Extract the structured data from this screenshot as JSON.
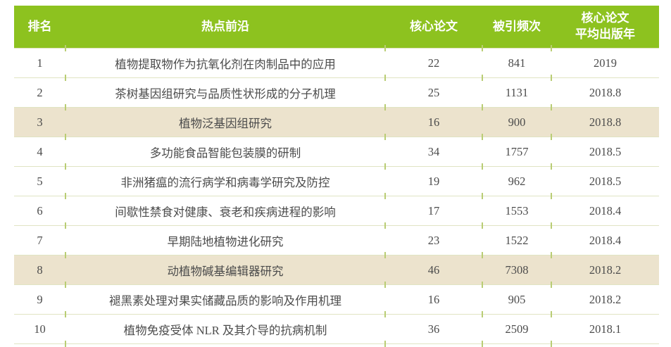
{
  "colors": {
    "header_bg": "#8dc21f",
    "header_text": "#ffffff",
    "highlight_row_bg": "#ece3cd",
    "separator_line": "#e0e4c3",
    "tick_mark": "#b9cd74",
    "body_text": "#4c4c4c"
  },
  "table": {
    "headers": [
      "排名",
      "热点前沿",
      "核心论文",
      "被引频次",
      "核心论文\n平均出版年"
    ],
    "rows": [
      {
        "rank": "1",
        "topic": "植物提取物作为抗氧化剂在肉制品中的应用",
        "papers": "22",
        "citations": "841",
        "year": "2019",
        "highlighted": false
      },
      {
        "rank": "2",
        "topic": "茶树基因组研究与品质性状形成的分子机理",
        "papers": "25",
        "citations": "1131",
        "year": "2018.8",
        "highlighted": false
      },
      {
        "rank": "3",
        "topic": "植物泛基因组研究",
        "papers": "16",
        "citations": "900",
        "year": "2018.8",
        "highlighted": true
      },
      {
        "rank": "4",
        "topic": "多功能食品智能包装膜的研制",
        "papers": "34",
        "citations": "1757",
        "year": "2018.5",
        "highlighted": false
      },
      {
        "rank": "5",
        "topic": "非洲猪瘟的流行病学和病毒学研究及防控",
        "papers": "19",
        "citations": "962",
        "year": "2018.5",
        "highlighted": false
      },
      {
        "rank": "6",
        "topic": "间歇性禁食对健康、衰老和疾病进程的影响",
        "papers": "17",
        "citations": "1553",
        "year": "2018.4",
        "highlighted": false
      },
      {
        "rank": "7",
        "topic": "早期陆地植物进化研究",
        "papers": "23",
        "citations": "1522",
        "year": "2018.4",
        "highlighted": false
      },
      {
        "rank": "8",
        "topic": "动植物碱基编辑器研究",
        "papers": "46",
        "citations": "7308",
        "year": "2018.2",
        "highlighted": true
      },
      {
        "rank": "9",
        "topic": "褪黑素处理对果实储藏品质的影响及作用机理",
        "papers": "16",
        "citations": "905",
        "year": "2018.2",
        "highlighted": false
      },
      {
        "rank": "10",
        "topic": "植物免疫受体 NLR 及其介导的抗病机制",
        "papers": "36",
        "citations": "2509",
        "year": "2018.1",
        "highlighted": false
      }
    ]
  },
  "chart_data": {
    "type": "table",
    "title": "",
    "columns": [
      "排名",
      "热点前沿",
      "核心论文",
      "被引频次",
      "核心论文平均出版年"
    ],
    "rows": [
      [
        1,
        "植物提取物作为抗氧化剂在肉制品中的应用",
        22,
        841,
        2019
      ],
      [
        2,
        "茶树基因组研究与品质性状形成的分子机理",
        25,
        1131,
        2018.8
      ],
      [
        3,
        "植物泛基因组研究",
        16,
        900,
        2018.8
      ],
      [
        4,
        "多功能食品智能包装膜的研制",
        34,
        1757,
        2018.5
      ],
      [
        5,
        "非洲猪瘟的流行病学和病毒学研究及防控",
        19,
        962,
        2018.5
      ],
      [
        6,
        "间歇性禁食对健康、衰老和疾病进程的影响",
        17,
        1553,
        2018.4
      ],
      [
        7,
        "早期陆地植物进化研究",
        23,
        1522,
        2018.4
      ],
      [
        8,
        "动植物碱基编辑器研究",
        46,
        7308,
        2018.2
      ],
      [
        9,
        "褪黑素处理对果实储藏品质的影响及作用机理",
        16,
        905,
        2018.2
      ],
      [
        10,
        "植物免疫受体 NLR 及其介导的抗病机制",
        36,
        2509,
        2018.1
      ]
    ],
    "highlighted_rows": [
      3,
      8
    ],
    "legend_position": "none",
    "grid": true
  }
}
